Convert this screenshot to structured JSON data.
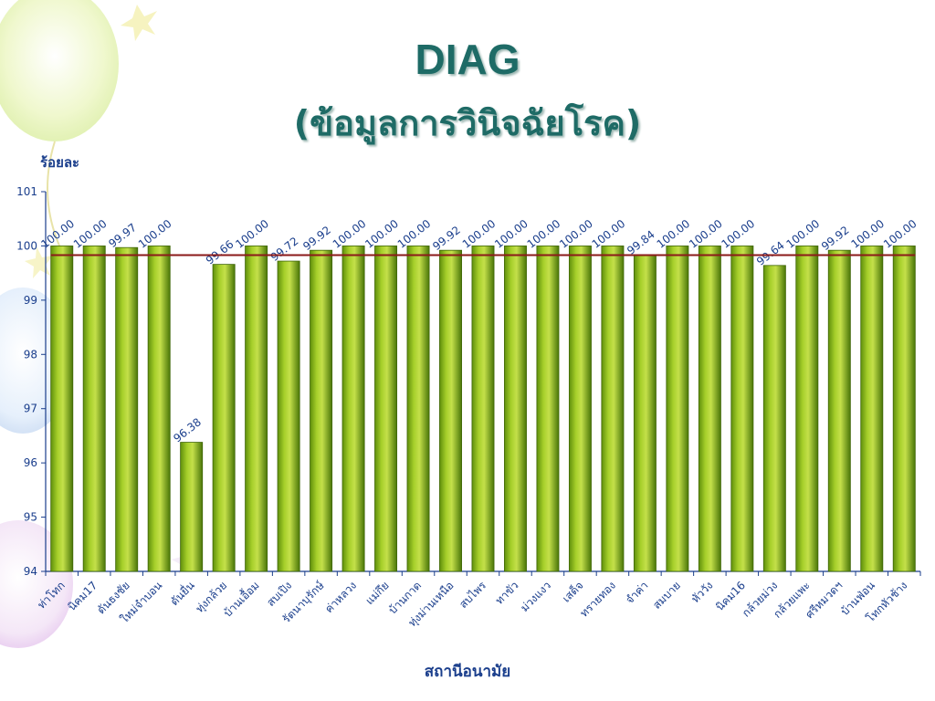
{
  "title": "DIAG",
  "subtitle": "(ข้อมูลการวินิจฉัยโรค)",
  "colors": {
    "bar": "#8fba1a",
    "bar_dark": "#4f7a0a",
    "target_line": "#8b1a1a",
    "text": "#1a3e8c",
    "title": "#1e6b66"
  },
  "chart_data": {
    "type": "bar",
    "title": "DIAG",
    "subtitle": "(ข้อมูลการวินิจฉัยโรค)",
    "xlabel": "สถานีอนามัย",
    "ylabel": "ร้อยละ",
    "ylim": [
      94,
      101
    ],
    "yticks": [
      94,
      95,
      96,
      97,
      98,
      99,
      100,
      101
    ],
    "grid": false,
    "reference_line": 99.83,
    "categories": [
      "ท่าโทก",
      "นิคม17",
      "ดันธงชัย",
      "ใหม่จำบอน",
      "ดันยื่น",
      "ทุ่งกล้วย",
      "บ้านเอื้อม",
      "สบเปิง",
      "รัตนาบุรักษ์",
      "ค่าหลวง",
      "แม่กึย",
      "บ้านกาด",
      "ทุ่งม่านเหนือ",
      "สบไพร",
      "ทาขัว",
      "ม่วงแงว",
      "เสด็จ",
      "ทรายทอง",
      "จำค่า",
      "สมบาย",
      "หัววัง",
      "นิคม16",
      "กล้วยม่วง",
      "กล้วยแพะ",
      "ศรีหมวดฯ",
      "บ้านฟ่อน",
      "โทกหัวช้าง"
    ],
    "values": [
      100.0,
      100.0,
      99.97,
      100.0,
      96.38,
      99.66,
      100.0,
      99.72,
      99.92,
      100.0,
      100.0,
      100.0,
      99.92,
      100.0,
      100.0,
      100.0,
      100.0,
      100.0,
      99.84,
      100.0,
      100.0,
      100.0,
      99.64,
      100.0,
      99.92,
      100.0,
      100.0
    ],
    "labels": [
      "100.00",
      "100.00",
      "99.97",
      "100.00",
      "96.38",
      "99.66",
      "100.00",
      "99.72",
      "99.92",
      "100.00",
      "100.00",
      "100.00",
      "99.92",
      "100.00",
      "100.00",
      "100.00",
      "100.00",
      "100.00",
      "99.84",
      "100.00",
      "100.00",
      "100.00",
      "99.64",
      "100.00",
      "99.92",
      "100.00",
      "100.00"
    ]
  }
}
